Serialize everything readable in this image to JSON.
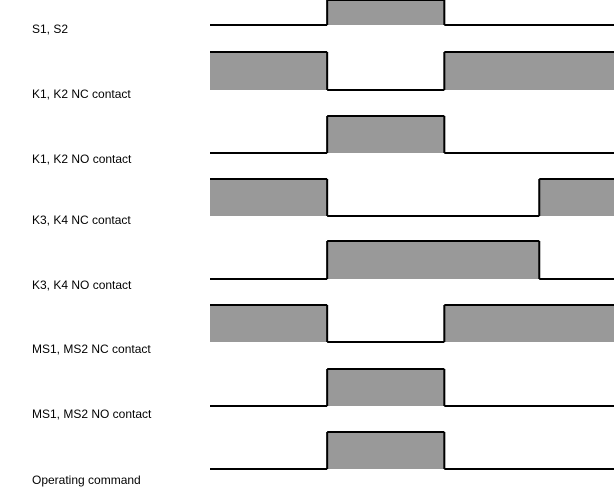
{
  "diagram": {
    "signals": [
      {
        "label": "S1, S2",
        "high_intervals": [
          [
            0.29,
            0.58
          ]
        ]
      },
      {
        "label": "K1, K2 NC contact",
        "high_intervals": [
          [
            0.0,
            0.29
          ],
          [
            0.58,
            1.0
          ]
        ]
      },
      {
        "label": "K1, K2 NO contact",
        "high_intervals": [
          [
            0.29,
            0.58
          ]
        ]
      },
      {
        "label": "K3, K4 NC contact",
        "high_intervals": [
          [
            0.0,
            0.29
          ],
          [
            0.815,
            1.0
          ]
        ]
      },
      {
        "label": "K3, K4 NO contact",
        "high_intervals": [
          [
            0.29,
            0.815
          ]
        ]
      },
      {
        "label": "MS1, MS2 NC contact",
        "high_intervals": [
          [
            0.0,
            0.29
          ],
          [
            0.58,
            1.0
          ]
        ]
      },
      {
        "label": "MS1, MS2 NO contact",
        "high_intervals": [
          [
            0.29,
            0.58
          ]
        ]
      },
      {
        "label": "Operating command",
        "high_intervals": [
          [
            0.29,
            0.58
          ]
        ]
      }
    ],
    "colors": {
      "pulse_fill": "#999999",
      "line": "#000000",
      "background": "#ffffff"
    }
  }
}
